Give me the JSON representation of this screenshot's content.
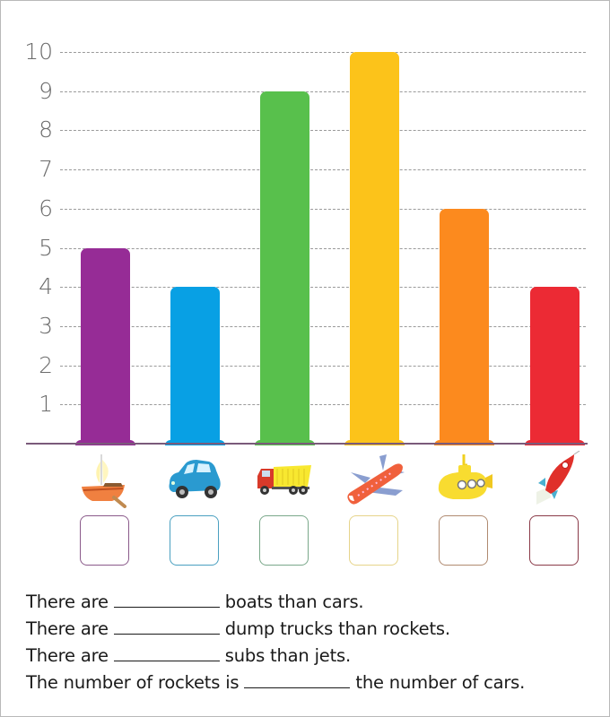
{
  "chart_data": {
    "type": "bar",
    "title": "",
    "xlabel": "",
    "ylabel": "",
    "ylim": [
      0,
      10
    ],
    "yticks": [
      1,
      2,
      3,
      4,
      5,
      6,
      7,
      8,
      9,
      10
    ],
    "grid": true,
    "categories": [
      "boats",
      "cars",
      "dump trucks",
      "jets",
      "subs",
      "rockets"
    ],
    "values": [
      5,
      4,
      9,
      10,
      6,
      4
    ],
    "colors": [
      "#962c96",
      "#08a0e4",
      "#58c04c",
      "#fcc31a",
      "#fc8a1e",
      "#ec2a34"
    ],
    "category_icons": [
      "boat-icon",
      "car-icon",
      "dump-truck-icon",
      "jet-icon",
      "submarine-icon",
      "rocket-icon"
    ]
  },
  "answer_boxes": [
    {
      "category": "boats",
      "border_color": "#8a5a8a",
      "value": ""
    },
    {
      "category": "cars",
      "border_color": "#4aa0c0",
      "value": ""
    },
    {
      "category": "dump trucks",
      "border_color": "#7aa88a",
      "value": ""
    },
    {
      "category": "jets",
      "border_color": "#e6d48a",
      "value": ""
    },
    {
      "category": "subs",
      "border_color": "#b08a70",
      "value": ""
    },
    {
      "category": "rockets",
      "border_color": "#8a3a48",
      "value": ""
    }
  ],
  "sentences": [
    {
      "before": "There are",
      "after": "boats than cars."
    },
    {
      "before": "There are",
      "after": "dump trucks than rockets."
    },
    {
      "before": "There are",
      "after": "subs than jets."
    },
    {
      "before": "The number of rockets is",
      "after": "the number of cars."
    }
  ]
}
